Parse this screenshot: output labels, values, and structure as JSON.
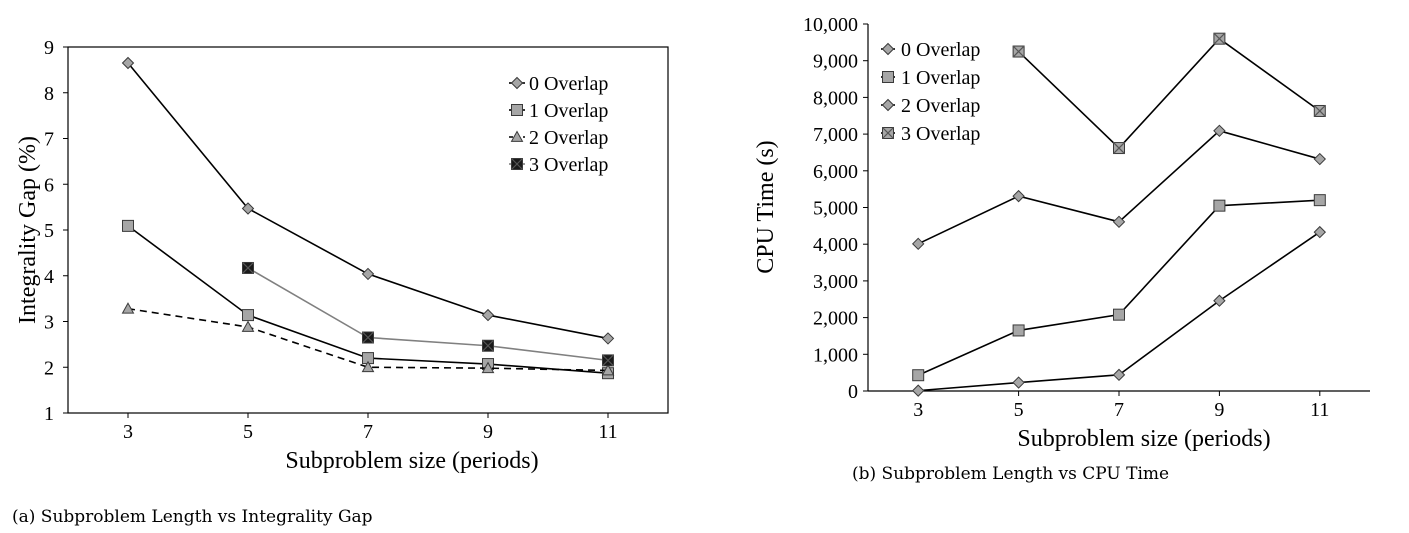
{
  "captions": {
    "a": "(a)  Subproblem Length vs Integrality Gap",
    "b": "(b)  Subproblem Length vs CPU Time"
  },
  "chart_data": [
    {
      "id": "gap",
      "type": "line",
      "xlabel": "Subproblem size (periods)",
      "ylabel": "Integrality Gap (%)",
      "xlim": [
        2,
        12
      ],
      "ylim": [
        1,
        9
      ],
      "x_ticks": [
        3,
        5,
        7,
        9,
        11
      ],
      "y_ticks": [
        1,
        2,
        3,
        4,
        5,
        6,
        7,
        8,
        9
      ],
      "legend_position": "top-right",
      "series": [
        {
          "name": "0 Overlap",
          "x": [
            3,
            5,
            7,
            9,
            11
          ],
          "values": [
            8.65,
            5.47,
            4.04,
            3.14,
            2.63
          ],
          "color": "#000000",
          "dash": "solid",
          "marker": "diamond",
          "marker_color": "#a6a6a6"
        },
        {
          "name": "1 Overlap",
          "x": [
            3,
            5,
            7,
            9,
            11
          ],
          "values": [
            5.09,
            3.14,
            2.2,
            2.07,
            1.87
          ],
          "color": "#000000",
          "dash": "solid",
          "marker": "square",
          "marker_color": "#a6a6a6"
        },
        {
          "name": "2 Overlap",
          "x": [
            3,
            5,
            7,
            9,
            11
          ],
          "values": [
            3.28,
            2.88,
            2.0,
            1.98,
            1.93
          ],
          "color": "#000000",
          "dash": "dashed",
          "marker": "triangle",
          "marker_color": "#a6a6a6"
        },
        {
          "name": "3 Overlap",
          "x": [
            5,
            7,
            9,
            11
          ],
          "values": [
            4.17,
            2.65,
            2.47,
            2.15
          ],
          "color": "#808080",
          "dash": "solid",
          "marker": "xsquare",
          "marker_color": "#1a1a1a"
        }
      ]
    },
    {
      "id": "cpu",
      "type": "line",
      "xlabel": "Subproblem size (periods)",
      "ylabel": "CPU Time (s)",
      "xlim": [
        2,
        12
      ],
      "ylim": [
        0,
        10000
      ],
      "x_ticks": [
        3,
        5,
        7,
        9,
        11
      ],
      "y_ticks": [
        0,
        1000,
        2000,
        3000,
        4000,
        5000,
        6000,
        7000,
        8000,
        9000,
        10000
      ],
      "y_tick_labels": [
        "0",
        "1,000",
        "2,000",
        "3,000",
        "4,000",
        "5,000",
        "6,000",
        "7,000",
        "8,000",
        "9,000",
        "10,000"
      ],
      "legend_position": "top-left",
      "series": [
        {
          "name": "0 Overlap",
          "x": [
            3,
            5,
            7,
            9,
            11
          ],
          "values": [
            10,
            230,
            440,
            2460,
            4330
          ],
          "color": "#000000",
          "dash": "solid",
          "marker": "diamond",
          "marker_color": "#a6a6a6"
        },
        {
          "name": "1 Overlap",
          "x": [
            3,
            5,
            7,
            9,
            11
          ],
          "values": [
            430,
            1650,
            2080,
            5050,
            5200
          ],
          "color": "#000000",
          "dash": "solid",
          "marker": "square",
          "marker_color": "#a6a6a6"
        },
        {
          "name": "2 Overlap",
          "x": [
            3,
            5,
            7,
            9,
            11
          ],
          "values": [
            4010,
            5310,
            4610,
            7090,
            6320
          ],
          "color": "#000000",
          "dash": "solid",
          "marker": "diamond",
          "marker_color": "#a6a6a6"
        },
        {
          "name": "3 Overlap",
          "x": [
            5,
            7,
            9,
            11
          ],
          "values": [
            9250,
            6620,
            9600,
            7630
          ],
          "color": "#000000",
          "dash": "solid",
          "marker": "xsquare",
          "marker_color": "#a6a6a6"
        }
      ]
    }
  ]
}
